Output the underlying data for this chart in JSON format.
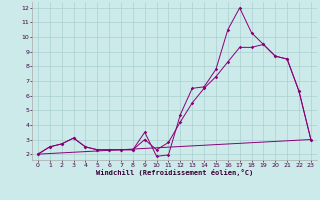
{
  "xlabel": "Windchill (Refroidissement éolien,°C)",
  "bg_color": "#cdeaea",
  "grid_color": "#aacfcf",
  "line_color": "#880077",
  "x_ticks": [
    0,
    1,
    2,
    3,
    4,
    5,
    6,
    7,
    8,
    9,
    10,
    11,
    12,
    13,
    14,
    15,
    16,
    17,
    18,
    19,
    20,
    21,
    22,
    23
  ],
  "y_ticks": [
    2,
    3,
    4,
    5,
    6,
    7,
    8,
    9,
    10,
    11,
    12
  ],
  "ylim": [
    1.6,
    12.4
  ],
  "xlim": [
    -0.5,
    23.5
  ],
  "line1_x": [
    0,
    1,
    2,
    3,
    4,
    5,
    6,
    7,
    8,
    9,
    10,
    11,
    12,
    13,
    14,
    15,
    16,
    17,
    18,
    19,
    20,
    21,
    22,
    23
  ],
  "line1_y": [
    2.0,
    2.5,
    2.7,
    3.1,
    2.5,
    2.3,
    2.3,
    2.3,
    2.3,
    3.5,
    1.85,
    1.95,
    4.7,
    6.5,
    6.6,
    7.8,
    10.5,
    12.0,
    10.3,
    9.5,
    8.7,
    8.5,
    6.3,
    3.0
  ],
  "line2_x": [
    0,
    1,
    2,
    3,
    4,
    5,
    6,
    7,
    8,
    9,
    10,
    11,
    12,
    13,
    14,
    15,
    16,
    17,
    18,
    19,
    20,
    21,
    22,
    23
  ],
  "line2_y": [
    2.0,
    2.5,
    2.7,
    3.1,
    2.5,
    2.3,
    2.3,
    2.3,
    2.3,
    3.0,
    2.3,
    2.8,
    4.2,
    5.5,
    6.5,
    7.3,
    8.3,
    9.3,
    9.3,
    9.5,
    8.7,
    8.5,
    6.3,
    3.0
  ],
  "line3_x": [
    0,
    23
  ],
  "line3_y": [
    2.0,
    3.0
  ]
}
